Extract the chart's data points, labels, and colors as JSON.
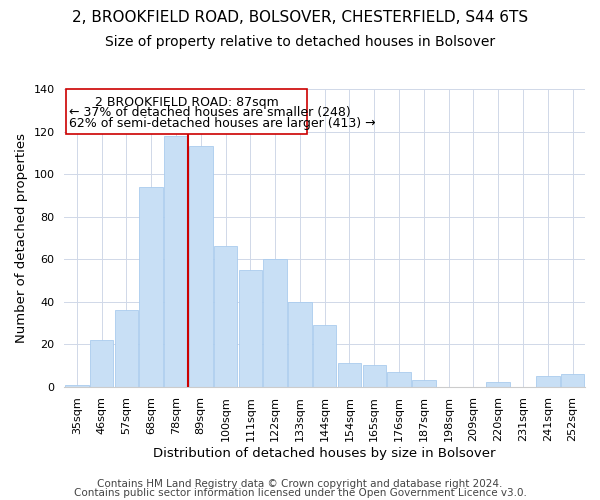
{
  "title": "2, BROOKFIELD ROAD, BOLSOVER, CHESTERFIELD, S44 6TS",
  "subtitle": "Size of property relative to detached houses in Bolsover",
  "xlabel": "Distribution of detached houses by size in Bolsover",
  "ylabel": "Number of detached properties",
  "categories": [
    "35sqm",
    "46sqm",
    "57sqm",
    "68sqm",
    "78sqm",
    "89sqm",
    "100sqm",
    "111sqm",
    "122sqm",
    "133sqm",
    "144sqm",
    "154sqm",
    "165sqm",
    "176sqm",
    "187sqm",
    "198sqm",
    "209sqm",
    "220sqm",
    "231sqm",
    "241sqm",
    "252sqm"
  ],
  "values": [
    1,
    22,
    36,
    94,
    118,
    113,
    66,
    55,
    60,
    40,
    29,
    11,
    10,
    7,
    3,
    0,
    0,
    2,
    0,
    5,
    6
  ],
  "bar_color": "#c8dff5",
  "bar_edge_color": "#aaccee",
  "vline_index": 5,
  "vline_color": "#cc0000",
  "ylim": [
    0,
    140
  ],
  "yticks": [
    0,
    20,
    40,
    60,
    80,
    100,
    120,
    140
  ],
  "annotation_title": "2 BROOKFIELD ROAD: 87sqm",
  "annotation_line1": "← 37% of detached houses are smaller (248)",
  "annotation_line2": "62% of semi-detached houses are larger (413) →",
  "footer1": "Contains HM Land Registry data © Crown copyright and database right 2024.",
  "footer2": "Contains public sector information licensed under the Open Government Licence v3.0.",
  "background_color": "#ffffff",
  "grid_color": "#d0d8e8",
  "title_fontsize": 11,
  "subtitle_fontsize": 10,
  "axis_label_fontsize": 9.5,
  "tick_fontsize": 8,
  "annotation_fontsize": 9,
  "footer_fontsize": 7.5
}
